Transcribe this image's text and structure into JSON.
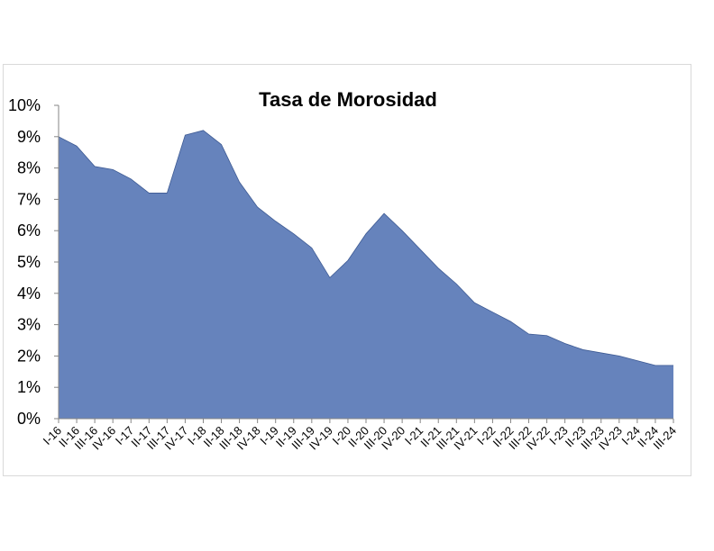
{
  "chart_data": {
    "type": "area",
    "title": "Tasa de Morosidad",
    "xlabel": "",
    "ylabel": "",
    "ylim": [
      0,
      10
    ],
    "yticks": [
      "0%",
      "1%",
      "2%",
      "3%",
      "4%",
      "5%",
      "6%",
      "7%",
      "8%",
      "9%",
      "10%"
    ],
    "grid": false,
    "legend": "none",
    "fill_color": "#6683bc",
    "categories": [
      "I-16",
      "II-16",
      "III-16",
      "IV-16",
      "I-17",
      "II-17",
      "III-17",
      "IV-17",
      "I-18",
      "II-18",
      "III-18",
      "IV-18",
      "I-19",
      "II-19",
      "III-19",
      "IV-19",
      "I-20",
      "II-20",
      "III-20",
      "IV-20",
      "I-21",
      "II-21",
      "III-21",
      "IV-21",
      "I-22",
      "II-22",
      "III-22",
      "IV-22",
      "I-23",
      "II-23",
      "III-23",
      "IV-23",
      "I-24",
      "II-24",
      "III-24"
    ],
    "values": [
      9.0,
      8.7,
      8.05,
      7.95,
      7.65,
      7.2,
      7.2,
      9.05,
      9.2,
      8.75,
      7.55,
      6.75,
      6.3,
      5.9,
      5.45,
      4.5,
      5.05,
      5.9,
      6.55,
      6.0,
      5.4,
      4.8,
      4.3,
      3.7,
      3.4,
      3.1,
      2.7,
      2.65,
      2.4,
      2.2,
      2.1,
      2.0,
      1.85,
      1.7,
      1.7
    ]
  }
}
